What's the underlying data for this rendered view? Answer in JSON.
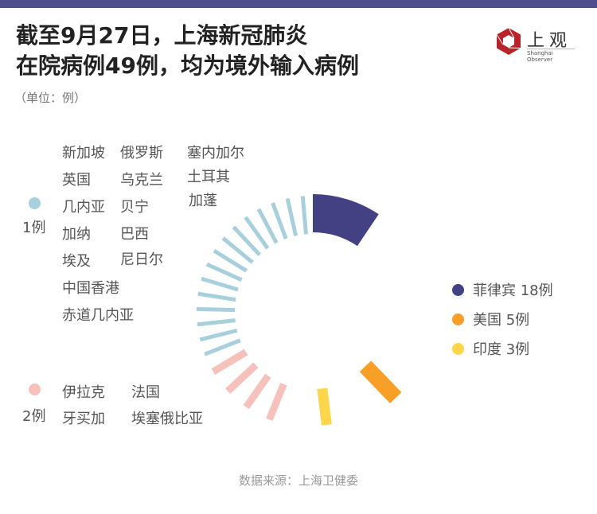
{
  "header": {
    "title_line1": "截至9月27日，上海新冠肺炎",
    "title_line2": "在院病例49例，均为境外输入病例",
    "unit": "（单位：例）",
    "logo_cn": "上观",
    "logo_en": "Shanghai Observer"
  },
  "colors": {
    "topbar": "#4f4d8c",
    "philippines": "#434184",
    "usa": "#f79f27",
    "india": "#fdd64b",
    "one_case": "#a8d0dc",
    "two_case": "#f5c1ba",
    "logo_red": "#b8242a"
  },
  "groups": {
    "one_case": {
      "label": "1例",
      "countries": [
        "新加坡",
        "英国",
        "几内亚",
        "加纳",
        "埃及",
        "中国香港",
        "赤道几内亚",
        "俄罗斯",
        "乌克兰",
        "贝宁",
        "巴西",
        "尼日尔",
        "塞内加尔",
        "土耳其",
        "加蓬"
      ]
    },
    "two_case": {
      "label": "2例",
      "countries": [
        "伊拉克",
        "牙买加",
        "法国",
        "埃塞俄比亚"
      ]
    }
  },
  "legend": [
    {
      "label": "菲律宾 18例",
      "color": "#434184"
    },
    {
      "label": "美国 5例",
      "color": "#f79f27"
    },
    {
      "label": "印度 3例",
      "color": "#fdd64b"
    }
  ],
  "source": "数据来源：上海卫健委",
  "chart_data": {
    "type": "radial-bar",
    "title": "截至9月27日，上海新冠肺炎在院病例49例，均为境外输入病例",
    "unit": "例",
    "total": 49,
    "categories": [
      "菲律宾",
      "美国",
      "印度",
      "伊拉克",
      "牙买加",
      "法国",
      "埃塞俄比亚",
      "新加坡",
      "英国",
      "几内亚",
      "加纳",
      "埃及",
      "中国香港",
      "赤道几内亚",
      "俄罗斯",
      "乌克兰",
      "贝宁",
      "巴西",
      "尼日尔",
      "塞内加尔",
      "土耳其",
      "加蓬"
    ],
    "values": [
      18,
      5,
      3,
      2,
      2,
      2,
      2,
      1,
      1,
      1,
      1,
      1,
      1,
      1,
      1,
      1,
      1,
      1,
      1,
      1,
      1,
      1
    ],
    "legend": [
      "菲律宾 18例",
      "美国 5例",
      "印度 3例",
      "2例",
      "1例"
    ]
  }
}
